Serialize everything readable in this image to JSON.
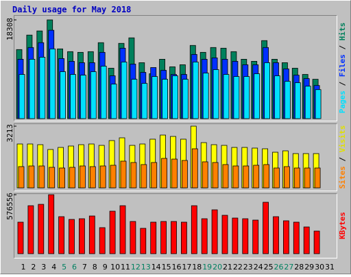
{
  "chart_data": {
    "type": "bar",
    "title": "Daily usage for May 2018",
    "categories": [
      "1",
      "2",
      "3",
      "4",
      "5",
      "6",
      "7",
      "8",
      "9",
      "10",
      "11",
      "12",
      "13",
      "14",
      "15",
      "16",
      "17",
      "18",
      "19",
      "20",
      "21",
      "22",
      "23",
      "24",
      "25",
      "26",
      "27",
      "28",
      "29",
      "30",
      "31"
    ],
    "legend_separator": " / ",
    "panels": [
      {
        "ylim": [
          0,
          18308
        ],
        "yticks": [
          18308
        ],
        "series": [
          {
            "name": "Hits",
            "color": "#00805c",
            "values": [
              12803,
              15490,
              16259,
              18308,
              12931,
              12419,
              12291,
              12419,
              14083,
              9346,
              13955,
              14979,
              10370,
              8322,
              11010,
              9602,
              9986,
              13571,
              12291,
              13187,
              13059,
              12419,
              11010,
              10626,
              14467,
              11010,
              10370,
              9346,
              8194,
              7298,
              null
            ]
          },
          {
            "name": "Files",
            "color": "#0030ff",
            "values": [
              11008,
              13184,
              14080,
              16384,
              11136,
              10624,
              10368,
              10368,
              12288,
              7936,
              13056,
              10112,
              8576,
              9472,
              8960,
              8192,
              8192,
              11904,
              11008,
              11264,
              11008,
              10624,
              9984,
              9984,
              13184,
              10368,
              9216,
              8064,
              7424,
              6144,
              null
            ]
          },
          {
            "name": "Pages",
            "color": "#00e0ff",
            "values": [
              8192,
              11008,
              11392,
              12928,
              8704,
              8192,
              8064,
              8704,
              9728,
              6400,
              10496,
              7296,
              6528,
              7808,
              7296,
              7936,
              7296,
              10496,
              8448,
              9088,
              8192,
              7808,
              7808,
              8320,
              10368,
              7936,
              6912,
              6656,
              6016,
              5376,
              null
            ]
          }
        ]
      },
      {
        "ylim": [
          0,
          3213
        ],
        "yticks": [
          3213
        ],
        "series": [
          {
            "name": "Visits",
            "color": "#ffff00",
            "values": [
              2285,
              2285,
              2249,
              1999,
              2106,
              2178,
              2249,
              2285,
              2213,
              2463,
              2606,
              2213,
              2285,
              2535,
              2749,
              2678,
              2535,
              3213,
              2356,
              2249,
              2213,
              2106,
              2106,
              2071,
              2035,
              1856,
              1928,
              1785,
              1785,
              1785,
              null
            ]
          },
          {
            "name": "Sites",
            "color": "#ff8000",
            "values": [
              1107,
              1142,
              1142,
              1071,
              1035,
              1071,
              1142,
              1107,
              1142,
              1178,
              1392,
              1321,
              1214,
              1321,
              1535,
              1499,
              1428,
              2035,
              1357,
              1321,
              1214,
              1142,
              1142,
              1178,
              1214,
              1035,
              1107,
              1035,
              1035,
              1035,
              null
            ]
          }
        ]
      },
      {
        "ylim": [
          0,
          576556
        ],
        "yticks": [
          576556
        ],
        "series": [
          {
            "name": "KBytes",
            "color": "#ff0000",
            "values": [
              308377,
              469280,
              482688,
              576556,
              362016,
              335200,
              341904,
              368720,
              254752,
              415648,
              469280,
              315088,
              248048,
              308384,
              315088,
              315088,
              308384,
              469280,
              341904,
              429056,
              375424,
              348608,
              341904,
              328496,
              502800,
              362016,
              321792,
              308384,
              261456,
              221232,
              null
            ]
          }
        ]
      }
    ]
  }
}
